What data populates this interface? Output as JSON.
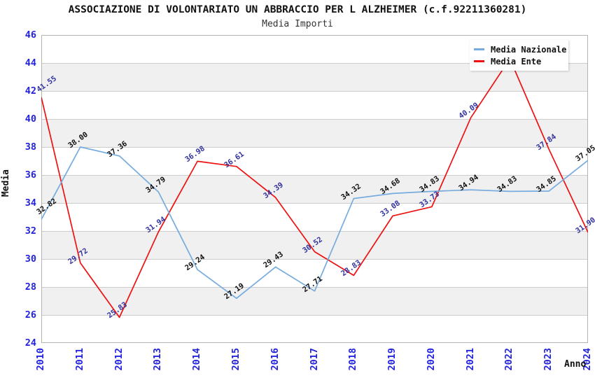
{
  "header": {
    "title": "ASSOCIAZIONE DI VOLONTARIATO UN ABBRACCIO PER L ALZHEIMER (c.f.92211360281)",
    "subtitle": "Media Importi"
  },
  "axes": {
    "y_label": "Media",
    "x_label": "Anno"
  },
  "colors": {
    "tick_text": "#2323dd",
    "grid_line": "#cccccc",
    "band_fill": "#f0f0f0",
    "plot_border": "#b3b3b3",
    "background": "#ffffff"
  },
  "chart_data": {
    "type": "line",
    "title": "Media Importi",
    "xlabel": "Anno",
    "ylabel": "Media",
    "ylim": [
      24,
      46
    ],
    "ytick_step": 2,
    "yticks": [
      46,
      44,
      42,
      40,
      38,
      36,
      34,
      32,
      30,
      28,
      26,
      24
    ],
    "x": [
      2010,
      2011,
      2012,
      2013,
      2014,
      2015,
      2016,
      2017,
      2018,
      2019,
      2020,
      2021,
      2022,
      2023,
      2024
    ],
    "xticklabels": [
      "2010",
      "2011",
      "2012",
      "2013",
      "2014",
      "2015",
      "2016",
      "2017",
      "2018",
      "2019",
      "2020",
      "2021",
      "2022",
      "2023",
      "2024"
    ],
    "grid": true,
    "alternating_bands": true,
    "legend_position": "top-right",
    "series": [
      {
        "name": "Media Nazionale",
        "color": "#76abdf",
        "label_color": "#111111",
        "values": [
          32.82,
          38.0,
          37.36,
          34.79,
          29.24,
          27.19,
          29.43,
          27.71,
          34.32,
          34.68,
          34.83,
          34.94,
          34.83,
          34.85,
          37.05
        ],
        "labels": [
          "32.82",
          "38.00",
          "37.36",
          "34.79",
          "29.24",
          "27.19",
          "29.43",
          "27.71",
          "34.32",
          "34.68",
          "34.83",
          "34.94",
          "34.83",
          "34.85",
          "37.05"
        ]
      },
      {
        "name": "Media Ente",
        "color": "#ee1111",
        "label_color": "#3333a0",
        "values": [
          41.55,
          29.72,
          25.83,
          31.94,
          36.98,
          36.61,
          34.39,
          30.52,
          28.83,
          33.08,
          33.73,
          40.09,
          44.3,
          37.84,
          31.9
        ],
        "labels": [
          "41.55",
          "29.72",
          "25.83",
          "31.94",
          "36.98",
          "36.61",
          "34.39",
          "30.52",
          "28.83",
          "33.08",
          "33.73",
          "40.09",
          null,
          "37.84",
          "31.90"
        ]
      }
    ]
  }
}
